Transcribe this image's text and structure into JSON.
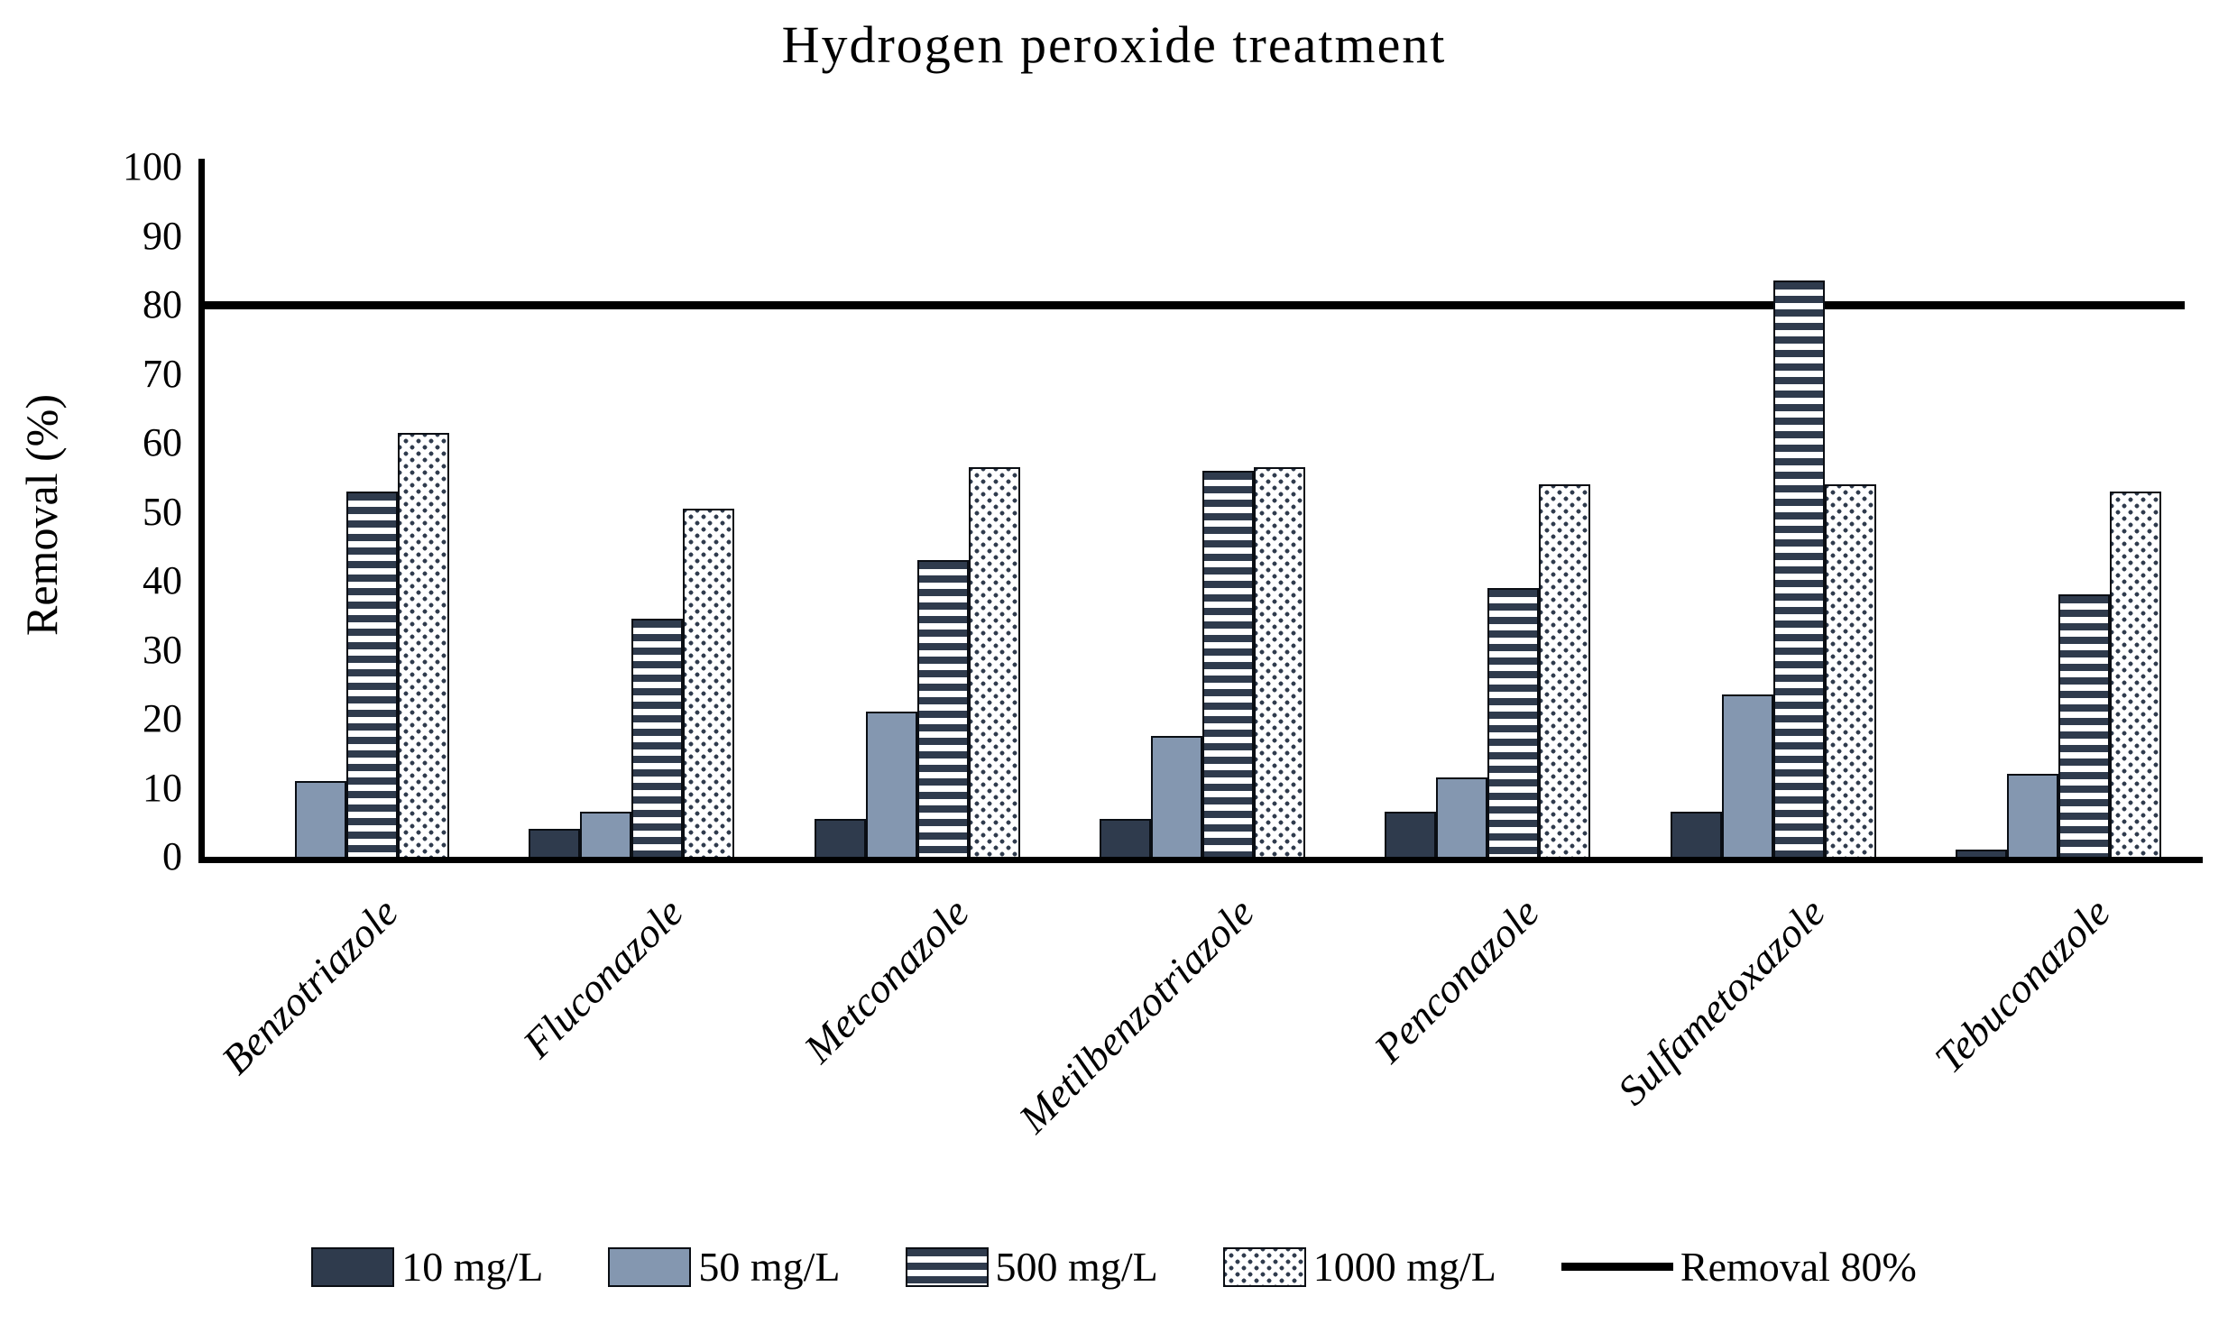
{
  "title": "Hydrogen peroxide treatment",
  "chart_data": {
    "type": "bar",
    "title": "Hydrogen peroxide treatment",
    "xlabel": "",
    "ylabel": "Removal (%)",
    "ylim": [
      0,
      100
    ],
    "y_tick_step": 10,
    "grid": false,
    "legend_position": "bottom",
    "categories": [
      "Benzotriazole",
      "Fluconazole",
      "Metconazole",
      "Metilbenzotriazole",
      "Penconazole",
      "Sulfametoxazole",
      "Tebuconazole"
    ],
    "series": [
      {
        "name": "10 mg/L",
        "style": "solid-dark",
        "values": [
          0,
          4,
          5.5,
          5.5,
          6.5,
          6.5,
          1
        ]
      },
      {
        "name": "50 mg/L",
        "style": "solid-light",
        "values": [
          11,
          6.5,
          21,
          17.5,
          11.5,
          23.5,
          12
        ]
      },
      {
        "name": "500 mg/L",
        "style": "hstripes",
        "values": [
          53,
          34.5,
          43,
          56,
          39,
          83.5,
          38
        ]
      },
      {
        "name": "1000 mg/L",
        "style": "dots",
        "values": [
          61.5,
          50.5,
          56.5,
          56.5,
          54,
          54,
          53
        ]
      }
    ],
    "reference_line": {
      "label": "Removal 80%",
      "value": 80
    }
  },
  "colors": {
    "bar_dark_navy": "#2F3B4D",
    "bar_light_blue": "#8497B0",
    "pattern_navy": "#2F3B4D",
    "reference_line": "#000000",
    "text": "#000000",
    "background": "#FFFFFF"
  }
}
